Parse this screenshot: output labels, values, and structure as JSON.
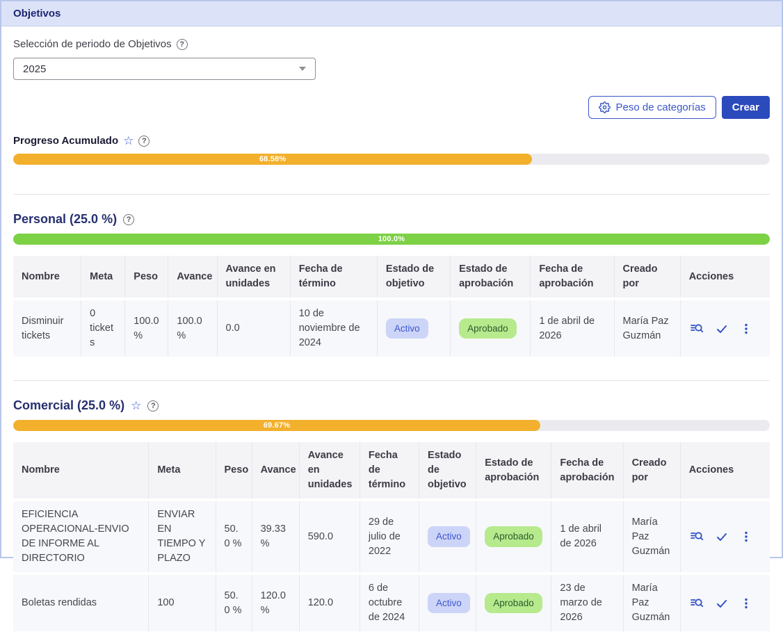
{
  "page": {
    "title": "Objetivos"
  },
  "period": {
    "label": "Selección de periodo de Objetivos",
    "value": "2025"
  },
  "toolbar": {
    "peso_button": "Peso de categorías",
    "crear_button": "Crear"
  },
  "icons": {
    "star": "☆",
    "help": "?"
  },
  "colors": {
    "accent_solid_button": "#2b4abc",
    "outline_button": "#3a57c9",
    "bar_orange": "#f2b02c",
    "bar_green": "#7cd145",
    "badge_active_bg": "#ccd5f7",
    "badge_active_text": "#3d55cf",
    "badge_approved_bg": "#b6ea8d",
    "badge_approved_text": "#2c5a2e"
  },
  "columns": [
    "Nombre",
    "Meta",
    "Peso",
    "Avance",
    "Avance en unidades",
    "Fecha de término",
    "Estado de objetivo",
    "Estado de aprobación",
    "Fecha de aprobación",
    "Creado por",
    "Acciones"
  ],
  "progreso": {
    "title": "Progreso Acumulado",
    "percent": 68.58,
    "percent_label": "68.58%"
  },
  "personal": {
    "title": "Personal (25.0 %)",
    "percent": 100,
    "percent_label": "100.0%",
    "rows": [
      {
        "nombre": "Disminuir tickets",
        "meta": "0 tickets",
        "peso": "100.0 %",
        "avance": "100.0 %",
        "avance_unidades": "0.0",
        "fecha_termino": "10 de noviembre de 2024",
        "estado_objetivo": "Activo",
        "estado_aprobacion": "Aprobado",
        "fecha_aprobacion": "1 de abril de 2026",
        "creado_por": "María Paz Guzmán"
      }
    ]
  },
  "comercial": {
    "title": "Comercial (25.0 %)",
    "percent": 69.67,
    "percent_label": "69.67%",
    "rows": [
      {
        "nombre": "EFICIENCIA OPERACIONAL-ENVIO DE INFORME AL DIRECTORIO",
        "meta": "ENVIAR EN TIEMPO Y PLAZO",
        "peso": "50.0 %",
        "avance": "39.33 %",
        "avance_unidades": "590.0",
        "fecha_termino": "29 de julio de 2022",
        "estado_objetivo": "Activo",
        "estado_aprobacion": "Aprobado",
        "fecha_aprobacion": "1 de abril de 2026",
        "creado_por": "María Paz Guzmán"
      },
      {
        "nombre": "Boletas rendidas",
        "meta": "100",
        "peso": "50.0 %",
        "avance": "120.0 %",
        "avance_unidades": "120.0",
        "fecha_termino": "6 de octubre de 2024",
        "estado_objetivo": "Activo",
        "estado_aprobacion": "Aprobado",
        "fecha_aprobacion": "23 de marzo de 2026",
        "creado_por": "María Paz Guzmán"
      }
    ]
  }
}
